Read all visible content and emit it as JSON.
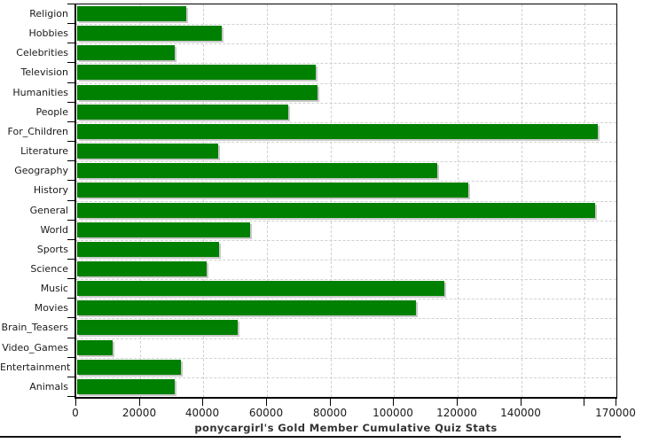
{
  "chart_data": {
    "type": "bar",
    "orientation": "horizontal",
    "title": "ponycargirl's Gold Member Cumulative Quiz Stats",
    "categories": [
      "Religion",
      "Hobbies",
      "Celebrities",
      "Television",
      "Humanities",
      "People",
      "For_Children",
      "Literature",
      "Geography",
      "History",
      "General",
      "World",
      "Sports",
      "Science",
      "Music",
      "Movies",
      "Brain_Teasers",
      "Video_Games",
      "Entertainment",
      "Animals"
    ],
    "values": [
      34400,
      45500,
      30600,
      75200,
      75600,
      66400,
      163800,
      44300,
      113400,
      123200,
      162900,
      54500,
      44800,
      40800,
      115700,
      106500,
      50400,
      11100,
      32700,
      30700
    ],
    "xlim": [
      0,
      170000
    ],
    "x_ticks": [
      {
        "value": 0,
        "label": "0"
      },
      {
        "value": 20000,
        "label": "20000"
      },
      {
        "value": 40000,
        "label": "40000"
      },
      {
        "value": 60000,
        "label": "60000"
      },
      {
        "value": 80000,
        "label": "80000"
      },
      {
        "value": 100000,
        "label": "100000"
      },
      {
        "value": 120000,
        "label": "120000"
      },
      {
        "value": 140000,
        "label": "140000"
      },
      {
        "value": 160000,
        "label": ""
      },
      {
        "value": 170000,
        "label": "170000"
      }
    ],
    "grid": "dashed",
    "legend": "none",
    "colors": {
      "bar": "#008000",
      "bar_shadow": "#c9c9c9",
      "grid_line": "#d0d0d0",
      "axis": "#000000",
      "tick_text": "#1a1a1a",
      "title_text": "#333333",
      "background": "#ffffff"
    }
  }
}
